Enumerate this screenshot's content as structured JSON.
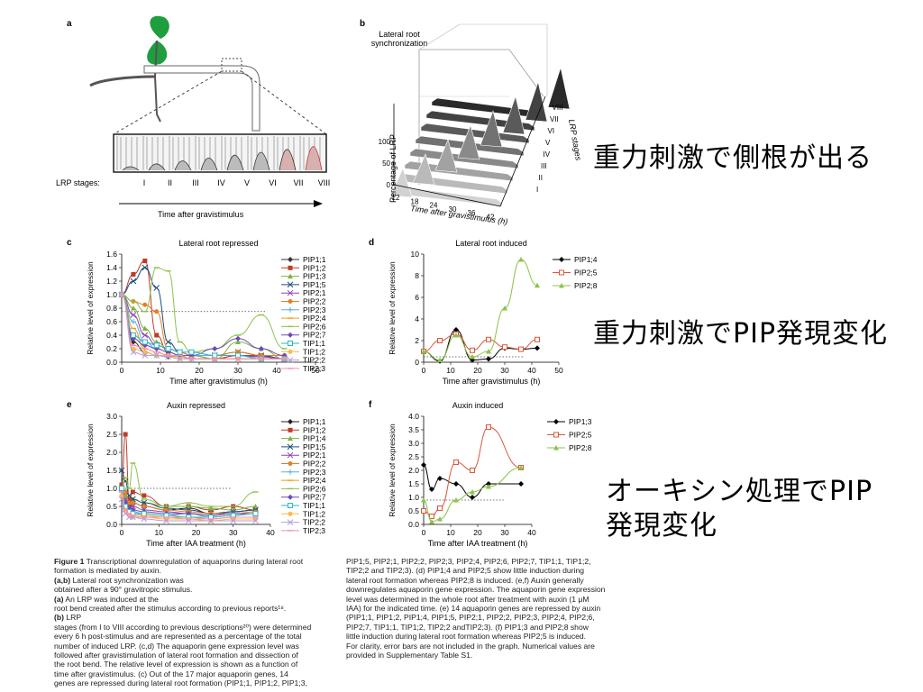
{
  "panels": {
    "a": {
      "letter": "a",
      "stages_label": "LRP stages:",
      "stages": [
        "I",
        "II",
        "III",
        "IV",
        "V",
        "VI",
        "VII",
        "VIII"
      ],
      "time_label": "Time after gravistimulus"
    },
    "b": {
      "letter": "b",
      "title_line1": "Lateral root",
      "title_line2": "synchronization",
      "ylabel": "Percentage of LRP",
      "xlabel": "Time after gravistimulus (h)",
      "depth_label": "LRP stages",
      "x_ticks": [
        "12",
        "18",
        "24",
        "30",
        "36",
        "42"
      ],
      "y_ticks": [
        "0",
        "50",
        "100"
      ],
      "stages": [
        "I",
        "II",
        "III",
        "IV",
        "V",
        "VI",
        "VII",
        "VIII"
      ]
    }
  },
  "notes": {
    "note1": "重力刺激で側根が出る",
    "note2": "重力刺激でPIP発現変化",
    "note3_line1": "オーキシン処理でPIP",
    "note3_line2": "発現変化"
  },
  "chart_data": [
    {
      "letter": "c",
      "type": "line",
      "title": "Lateral root repressed",
      "xlabel": "Time after gravistimulus (h)",
      "ylabel": "Relative level of expression",
      "xlim": [
        0,
        50
      ],
      "ylim": [
        0,
        1.6
      ],
      "x_ticks": [
        0,
        10,
        20,
        30,
        40,
        50
      ],
      "y_ticks": [
        0,
        0.2,
        0.4,
        0.6,
        0.8,
        1.0,
        1.2,
        1.4,
        1.6
      ],
      "reference_line": 0.75,
      "x": [
        0,
        3,
        6,
        9,
        12,
        15,
        18,
        24,
        30,
        36,
        42
      ],
      "series": [
        {
          "name": "PIP1;1",
          "color": "#333333",
          "marker": "diamond",
          "values": [
            1,
            0.3,
            0.15,
            0.1,
            0.08,
            0.1,
            0.05,
            0.05,
            0.1,
            0.08,
            0.05
          ]
        },
        {
          "name": "PIP1;2",
          "color": "#c0392b",
          "marker": "square",
          "values": [
            1,
            1.3,
            1.5,
            0.4,
            0.15,
            0.1,
            0.1,
            0.05,
            0.1,
            0.1,
            0.05
          ]
        },
        {
          "name": "PIP1;3",
          "color": "#7cb342",
          "marker": "triangle",
          "values": [
            1,
            0.8,
            0.5,
            0.3,
            0.2,
            0.15,
            0.1,
            0.05,
            0.3,
            0.2,
            0.05
          ]
        },
        {
          "name": "PIP1;5",
          "color": "#1f4e79",
          "marker": "x",
          "values": [
            1,
            1.2,
            1.4,
            1.1,
            0.3,
            0.15,
            0.1,
            0.1,
            0.15,
            0.1,
            0.05
          ]
        },
        {
          "name": "PIP2;1",
          "color": "#8e44ad",
          "marker": "x",
          "values": [
            1,
            0.7,
            0.4,
            0.25,
            0.2,
            0.15,
            0.1,
            0.1,
            0.1,
            0.08,
            0.05
          ]
        },
        {
          "name": "PIP2;2",
          "color": "#e67e22",
          "marker": "circle",
          "values": [
            1,
            0.9,
            0.85,
            0.75,
            0.2,
            0.15,
            0.1,
            0.1,
            0.15,
            0.1,
            0.1
          ]
        },
        {
          "name": "PIP2;3",
          "color": "#5dade2",
          "marker": "plus",
          "values": [
            1,
            0.6,
            0.3,
            0.2,
            0.15,
            0.1,
            0.1,
            0.1,
            0.1,
            0.05,
            0.05
          ]
        },
        {
          "name": "PIP2;4",
          "color": "#f39c12",
          "marker": "dash",
          "values": [
            1,
            0.5,
            0.2,
            0.15,
            0.1,
            0.08,
            0.05,
            0.05,
            0.05,
            0.05,
            0.05
          ]
        },
        {
          "name": "PIP2;6",
          "color": "#8bc34a",
          "marker": "dash",
          "values": [
            1,
            0.9,
            0.75,
            1.4,
            1.35,
            0.3,
            0.15,
            0.2,
            0.4,
            0.7,
            0.2
          ]
        },
        {
          "name": "PIP2;7",
          "color": "#6c4bb5",
          "marker": "diamond",
          "values": [
            1,
            0.35,
            0.25,
            0.2,
            0.15,
            0.1,
            0.1,
            0.2,
            0.35,
            0.2,
            0.1
          ]
        },
        {
          "name": "TIP1;1",
          "color": "#29b6c6",
          "marker": "square-open",
          "values": [
            1,
            0.4,
            0.3,
            0.25,
            0.2,
            0.15,
            0.15,
            0.1,
            0.1,
            0.05,
            0.05
          ]
        },
        {
          "name": "TIP1;2",
          "color": "#ffb74d",
          "marker": "circle",
          "values": [
            1,
            0.2,
            0.15,
            0.1,
            0.1,
            0.05,
            0.05,
            0.05,
            0.05,
            0.05,
            0.05
          ]
        },
        {
          "name": "TIP2;2",
          "color": "#b39ddb",
          "marker": "x",
          "values": [
            1,
            0.15,
            0.1,
            0.1,
            0.08,
            0.05,
            0.05,
            0.05,
            0.05,
            0.05,
            0.05
          ]
        },
        {
          "name": "TIP2;3",
          "color": "#f48fb1",
          "marker": "dash",
          "values": [
            1,
            0.25,
            0.2,
            0.15,
            0.1,
            0.1,
            0.05,
            0.05,
            0.05,
            0.05,
            0.05
          ]
        }
      ]
    },
    {
      "letter": "d",
      "type": "line",
      "title": "Lateral root induced",
      "xlabel": "Time after gravistimulus (h)",
      "ylabel": "Relative level of expression",
      "xlim": [
        0,
        50
      ],
      "ylim": [
        0,
        10
      ],
      "x_ticks": [
        0,
        10,
        20,
        30,
        40,
        50
      ],
      "y_ticks": [
        0,
        2,
        4,
        6,
        8,
        10
      ],
      "reference_line": 0.5,
      "x": [
        0,
        6,
        12,
        18,
        24,
        30,
        36,
        42
      ],
      "series": [
        {
          "name": "PIP1;4",
          "color": "#000000",
          "marker": "diamond",
          "values": [
            1,
            0.1,
            3.0,
            0.2,
            0.3,
            1.3,
            1.2,
            1.3
          ]
        },
        {
          "name": "PIP2;5",
          "color": "#d9573b",
          "marker": "square-open",
          "values": [
            1,
            2.0,
            2.6,
            1.1,
            2.1,
            1.4,
            1.2,
            2.1
          ]
        },
        {
          "name": "PIP2;8",
          "color": "#8bc34a",
          "marker": "triangle",
          "values": [
            1,
            0.2,
            2.5,
            0.5,
            1.0,
            5.0,
            9.5,
            7.1
          ]
        }
      ]
    },
    {
      "letter": "e",
      "type": "line",
      "title": "Auxin repressed",
      "xlabel": "Time after IAA treatment (h)",
      "ylabel": "Relative level of expression",
      "xlim": [
        0,
        40
      ],
      "ylim": [
        0,
        3.0
      ],
      "x_ticks": [
        0,
        10,
        20,
        30,
        40
      ],
      "y_ticks": [
        0,
        0.5,
        1.0,
        1.5,
        2.0,
        2.5,
        3.0
      ],
      "reference_line": 1.0,
      "x": [
        0,
        1,
        2,
        3,
        6,
        12,
        18,
        24,
        30,
        36
      ],
      "series": [
        {
          "name": "PIP1;1",
          "color": "#222222",
          "marker": "diamond",
          "values": [
            1.0,
            0.9,
            0.5,
            0.6,
            0.5,
            0.4,
            0.45,
            0.3,
            0.35,
            0.4
          ]
        },
        {
          "name": "PIP1;2",
          "color": "#c0392b",
          "marker": "square",
          "values": [
            1.1,
            2.5,
            0.7,
            0.9,
            0.8,
            0.5,
            0.5,
            0.4,
            0.5,
            0.4
          ]
        },
        {
          "name": "PIP1;4",
          "color": "#7cb342",
          "marker": "triangle",
          "values": [
            1.0,
            0.8,
            0.6,
            0.7,
            0.6,
            0.5,
            0.5,
            0.45,
            0.4,
            0.5
          ]
        },
        {
          "name": "PIP1;5",
          "color": "#1f4e79",
          "marker": "x",
          "values": [
            1.5,
            1.2,
            0.8,
            0.7,
            0.6,
            0.45,
            0.4,
            0.3,
            0.35,
            0.4
          ]
        },
        {
          "name": "PIP2;1",
          "color": "#8e44ad",
          "marker": "x",
          "values": [
            1.0,
            0.7,
            0.5,
            0.5,
            0.4,
            0.35,
            0.3,
            0.25,
            0.3,
            0.3
          ]
        },
        {
          "name": "PIP2;2",
          "color": "#e67e22",
          "marker": "circle",
          "values": [
            1.0,
            0.9,
            0.6,
            0.6,
            0.5,
            0.4,
            0.35,
            0.3,
            0.3,
            0.35
          ]
        },
        {
          "name": "PIP2;3",
          "color": "#5dade2",
          "marker": "plus",
          "values": [
            1.0,
            0.6,
            0.4,
            0.35,
            0.3,
            0.25,
            0.3,
            0.2,
            0.25,
            0.3
          ]
        },
        {
          "name": "PIP2;4",
          "color": "#f39c12",
          "marker": "dash",
          "values": [
            0.9,
            0.5,
            0.3,
            0.3,
            0.25,
            0.2,
            0.2,
            0.15,
            0.2,
            0.2
          ]
        },
        {
          "name": "PIP2;6",
          "color": "#8bc34a",
          "marker": "dash",
          "values": [
            1.0,
            1.3,
            1.0,
            1.7,
            0.7,
            0.5,
            0.6,
            0.5,
            0.5,
            0.9
          ]
        },
        {
          "name": "PIP2;7",
          "color": "#6c4bb5",
          "marker": "diamond",
          "values": [
            1.0,
            0.6,
            0.4,
            0.4,
            0.35,
            0.3,
            0.3,
            0.25,
            0.3,
            0.3
          ]
        },
        {
          "name": "TIP1;1",
          "color": "#29b6c6",
          "marker": "square-open",
          "values": [
            1.0,
            0.5,
            0.35,
            0.3,
            0.3,
            0.25,
            0.2,
            0.2,
            0.25,
            0.3
          ]
        },
        {
          "name": "TIP1;2",
          "color": "#ffb74d",
          "marker": "circle",
          "values": [
            0.8,
            0.4,
            0.25,
            0.2,
            0.2,
            0.15,
            0.15,
            0.1,
            0.15,
            0.15
          ]
        },
        {
          "name": "TIP2;2",
          "color": "#b39ddb",
          "marker": "x",
          "values": [
            0.7,
            0.3,
            0.2,
            0.2,
            0.15,
            0.1,
            0.1,
            0.1,
            0.1,
            0.1
          ]
        },
        {
          "name": "TIP2;3",
          "color": "#f48fb1",
          "marker": "dash",
          "values": [
            0.9,
            0.4,
            0.3,
            0.25,
            0.2,
            0.2,
            0.15,
            0.15,
            0.2,
            0.2
          ]
        }
      ]
    },
    {
      "letter": "f",
      "type": "line",
      "title": "Auxin induced",
      "xlabel": "Time after IAA treatment (h)",
      "ylabel": "Relative level of expression",
      "xlim": [
        0,
        40
      ],
      "ylim": [
        0,
        4.0
      ],
      "x_ticks": [
        0,
        10,
        20,
        30,
        40
      ],
      "y_ticks": [
        0,
        0.5,
        1.0,
        1.5,
        2.0,
        2.5,
        3.0,
        3.5,
        4.0
      ],
      "reference_line": 0.9,
      "x": [
        0,
        3,
        6,
        12,
        18,
        24,
        36
      ],
      "series": [
        {
          "name": "PIP1;3",
          "color": "#000000",
          "marker": "diamond",
          "values": [
            2.2,
            1.3,
            1.7,
            1.5,
            1.0,
            1.5,
            1.5
          ]
        },
        {
          "name": "PIP2;5",
          "color": "#d9573b",
          "marker": "square-open",
          "values": [
            0.5,
            0.3,
            0.6,
            2.3,
            2.0,
            3.6,
            2.1
          ]
        },
        {
          "name": "PIP2;8",
          "color": "#8bc34a",
          "marker": "triangle",
          "values": [
            0.9,
            0.1,
            0.2,
            0.9,
            1.2,
            1.4,
            2.1
          ]
        }
      ]
    }
  ],
  "caption": {
    "left": [
      {
        "b": "Figure 1",
        "t": " Transcriptional downregulation of aquaporins during lateral root"
      },
      {
        "t": "formation is mediated by auxin. "
      },
      {
        "b": "(a,b)",
        "t": " Lateral root synchronization was"
      },
      {
        "t": "obtained after a 90° gravitropic stimulus. "
      },
      {
        "b": "(a)",
        "t": " An LRP was induced at the"
      },
      {
        "t": "root bend created after the stimulus according to previous reports¹⁸. "
      },
      {
        "b": "(b)",
        "t": " LRP"
      },
      {
        "t": "stages (from I to VIII according to previous descriptions²⁰) were determined"
      },
      {
        "t": "every 6 h post-stimulus and are represented as a percentage of the total"
      },
      {
        "t": "number of induced LRP. (c,d) The aquaporin gene expression level was"
      },
      {
        "t": "followed after gravistimulation of lateral root formation and dissection of"
      },
      {
        "t": "the root bend. The relative level of expression is shown as a function of"
      },
      {
        "t": "time after gravistimulus. (c) Out of the 17 major aquaporin genes, 14"
      },
      {
        "t": "genes are repressed during lateral root formation (PIP1;1, PIP1;2, PIP1;3,"
      }
    ],
    "right": [
      "PIP1;5, PIP2;1, PIP2;2, PIP2;3, PIP2;4, PIP2;6, PIP2;7, TIP1;1, TIP1;2,",
      "TIP2;2 and TIP2;3). (d) PIP1;4 and PIP2;5 show little induction during",
      "lateral root formation whereas PIP2;8 is induced. (e,f) Auxin generally",
      "downregulates aquaporin gene expression. The aquaporin gene expression",
      "level was determined in the whole root after treatment with auxin (1 μM",
      "IAA) for the indicated time. (e) 14 aquaporin genes are repressed by auxin",
      "(PIP1;1, PIP1;2, PIP1;4, PIP1;5, PIP2;1, PIP2;2, PIP2;3, PIP2;4, PIP2;6,",
      "PIP2;7, TIP1;1, TIP1;2, TIP2;2 andTIP2;3). (f) PIP1;3 and PIP2;8 show",
      "little induction during lateral root formation whereas PIP2;5 is induced.",
      "For clarity, error bars are not included in the graph. Numerical values are",
      "provided in Supplementary Table S1."
    ]
  }
}
